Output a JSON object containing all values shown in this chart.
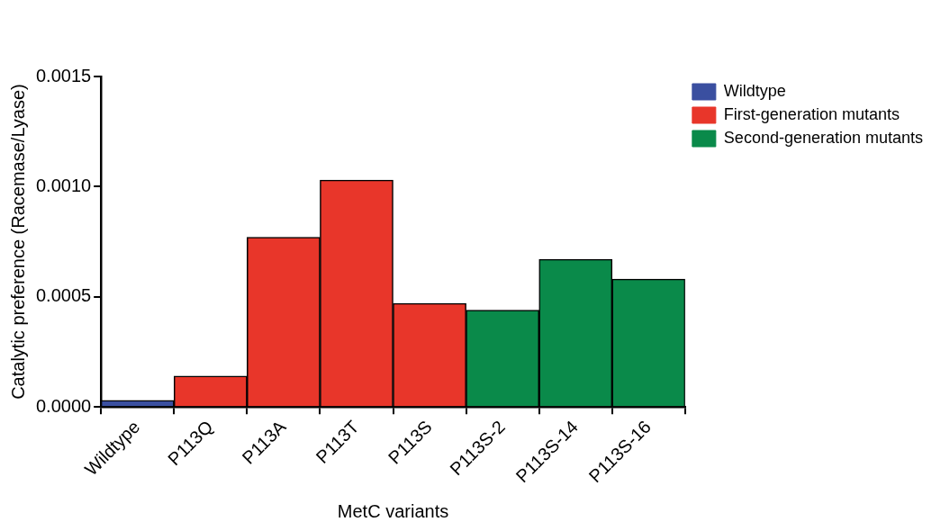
{
  "chart_data": {
    "type": "bar",
    "xlabel": "MetC variants",
    "ylabel": "Catalytic preference (Racemase/Lyase)",
    "categories": [
      "Wildtype",
      "P113Q",
      "P113A",
      "P113T",
      "P113S",
      "P113S-2",
      "P113S-14",
      "P113S-16"
    ],
    "series": [
      {
        "name": "Wildtype",
        "color": "#3a4fa0",
        "values": [
          3e-05,
          null,
          null,
          null,
          null,
          null,
          null,
          null
        ]
      },
      {
        "name": "First-generation mutants",
        "color": "#e8362a",
        "values": [
          null,
          0.00014,
          0.00077,
          0.00103,
          0.00047,
          null,
          null,
          null
        ]
      },
      {
        "name": "Second-generation mutants",
        "color": "#0a8a4a",
        "values": [
          null,
          null,
          null,
          null,
          null,
          0.00044,
          0.00067,
          0.00058
        ]
      }
    ],
    "ylim": [
      0,
      0.0015
    ],
    "yticks": [
      {
        "value": 0,
        "label": "0.0000"
      },
      {
        "value": 0.0005,
        "label": "0.0005"
      },
      {
        "value": 0.001,
        "label": "0.0010"
      },
      {
        "value": 0.0015,
        "label": "0.0015"
      }
    ],
    "grid": false,
    "legend": "right"
  }
}
